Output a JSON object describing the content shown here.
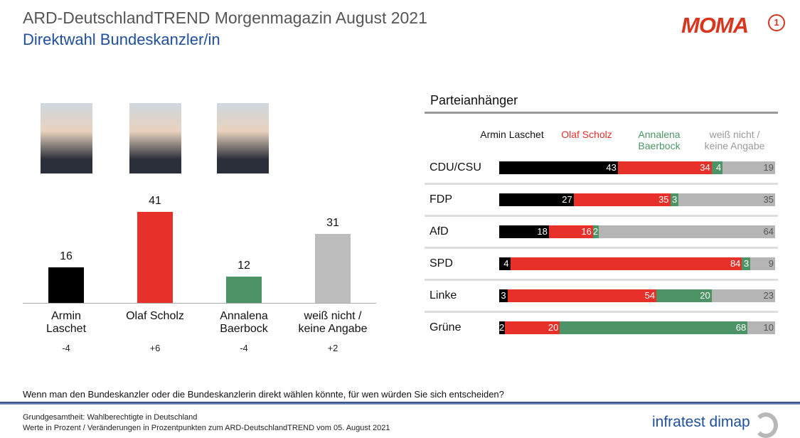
{
  "header": {
    "title": "ARD-DeutschlandTREND Morgenmagazin August 2021",
    "subtitle": "Direktwahl Bundeskanzler/in",
    "logo": "MOMA",
    "logo_mark": "1"
  },
  "chart_data": [
    {
      "type": "bar",
      "title": "Direktwahl Bundeskanzler/in",
      "categories": [
        "Armin Laschet",
        "Olaf Scholz",
        "Annalena Baerbock",
        "weiß nicht / keine Angabe"
      ],
      "values": [
        16,
        41,
        12,
        31
      ],
      "changes": [
        "-4",
        "+6",
        "-4",
        "+2"
      ],
      "colors": [
        "#000000",
        "#e8302a",
        "#4c9465",
        "#bdbdbd"
      ],
      "ylim": [
        0,
        45
      ]
    },
    {
      "type": "stacked-bar",
      "title": "Parteianhänger",
      "series_labels": [
        "Armin Laschet",
        "Olaf Scholz",
        "Annalena Baerbock",
        "weiß nicht / keine Angabe"
      ],
      "series_colors": [
        "#000000",
        "#e8302a",
        "#4c9465",
        "#b5b5b5"
      ],
      "header_colors": [
        "#111111",
        "#e8302a",
        "#4c9465",
        "#9a9a9a"
      ],
      "categories": [
        "CDU/CSU",
        "FDP",
        "AfD",
        "SPD",
        "Linke",
        "Grüne"
      ],
      "values": [
        [
          43,
          34,
          4,
          19
        ],
        [
          27,
          35,
          3,
          35
        ],
        [
          18,
          16,
          2,
          64
        ],
        [
          4,
          84,
          3,
          9
        ],
        [
          3,
          54,
          20,
          23
        ],
        [
          2,
          20,
          68,
          10
        ]
      ]
    }
  ],
  "footer": {
    "question": "Wenn man den Bundeskanzler  oder die Bundeskanzlerin  direkt wählen könnte,  für wen würden  Sie sich entscheiden?",
    "note1": "Grundgesamtheit:  Wahlberechtigte in Deutschland",
    "note2": "Werte in Prozent / Veränderungen  in Prozentpunkten zum ARD-DeutschlandTREND  vom  05. August 2021",
    "brand": "infratest dimap"
  }
}
